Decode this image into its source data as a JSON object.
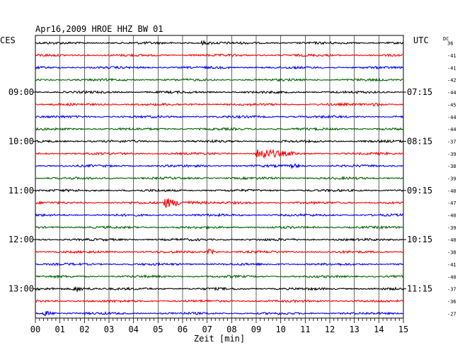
{
  "header": {
    "title": "Apr16,2009   HROE HHZ BW 01",
    "left_timezone": "CES",
    "right_timezone": "UTC",
    "right_column_header": "DC"
  },
  "chart_data": {
    "type": "line",
    "title": "Apr16,2009   HROE HHZ BW 01",
    "xlabel": "Zeit [min]",
    "ylabel": "",
    "x_ticks": [
      "00",
      "01",
      "02",
      "03",
      "04",
      "05",
      "06",
      "07",
      "08",
      "09",
      "10",
      "11",
      "12",
      "13",
      "14",
      "15"
    ],
    "xlim": [
      0,
      15
    ],
    "grid": true,
    "colors": [
      "#000000",
      "#ff0000",
      "#0000ff",
      "#006400"
    ],
    "left_hour_labels": [
      {
        "row": 4,
        "label": "09:00"
      },
      {
        "row": 8,
        "label": "10:00"
      },
      {
        "row": 12,
        "label": "11:00"
      },
      {
        "row": 16,
        "label": "12:00"
      },
      {
        "row": 20,
        "label": "13:00"
      }
    ],
    "right_hour_labels": [
      {
        "row": 4,
        "label": "07:15"
      },
      {
        "row": 8,
        "label": "08:15"
      },
      {
        "row": 12,
        "label": "09:15"
      },
      {
        "row": 16,
        "label": "10:15"
      },
      {
        "row": 20,
        "label": "11:15"
      }
    ],
    "dc_offsets": [
      "36",
      "-41",
      "-41",
      "-42",
      "-44",
      "-45",
      "-44",
      "-44",
      "-37",
      "-39",
      "-38",
      "-39",
      "-40",
      "-47",
      "-40",
      "-39",
      "-40",
      "-38",
      "-41",
      "-40",
      "-37",
      "-36",
      "-27"
    ],
    "events": [
      {
        "row": 9,
        "minute": 9.1,
        "amplitude": 4.5,
        "duration": 1.6
      },
      {
        "row": 13,
        "minute": 5.3,
        "amplitude": 3.2,
        "duration": 1.8
      },
      {
        "row": 17,
        "minute": 7.1,
        "amplitude": 2.0,
        "duration": 0.5
      },
      {
        "row": 20,
        "minute": 1.6,
        "amplitude": 1.6,
        "duration": 1.2
      },
      {
        "row": 22,
        "minute": 0.4,
        "amplitude": 1.4,
        "duration": 0.8
      },
      {
        "row": 10,
        "minute": 10.5,
        "amplitude": 1.3,
        "duration": 0.6
      },
      {
        "row": 5,
        "minute": 13.8,
        "amplitude": 1.2,
        "duration": 0.6
      },
      {
        "row": 0,
        "minute": 6.8,
        "amplitude": 1.1,
        "duration": 0.8
      }
    ]
  }
}
